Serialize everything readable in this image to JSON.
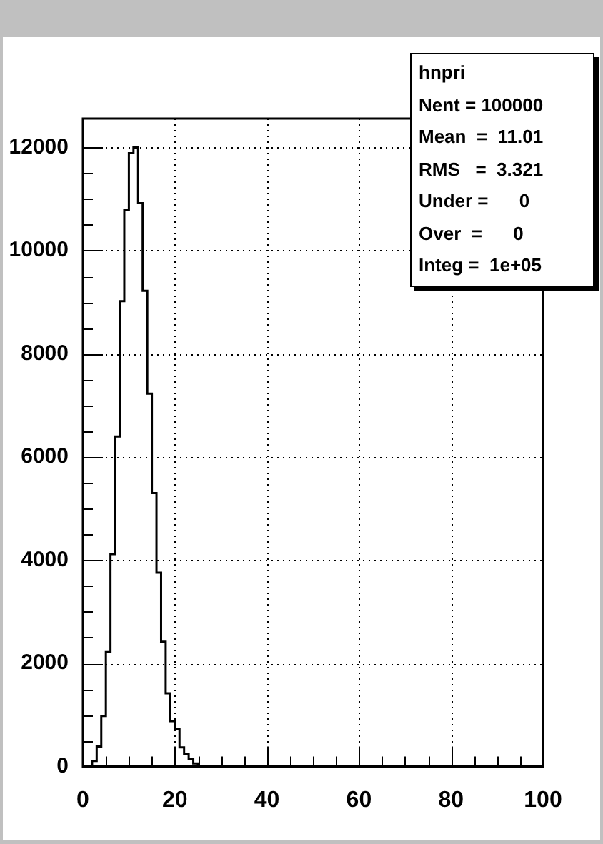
{
  "chart_data": {
    "type": "histogram",
    "bins": [
      0,
      1,
      2,
      3,
      4,
      5,
      6,
      7,
      8,
      9,
      10,
      11,
      12,
      13,
      14,
      15,
      16,
      17,
      18,
      19,
      20,
      21,
      22,
      23,
      24,
      25,
      26,
      27,
      28,
      29,
      30,
      31,
      32,
      33,
      34,
      35,
      36,
      37,
      38,
      39,
      40,
      41,
      42,
      43,
      44,
      45,
      46,
      47,
      48,
      49,
      50,
      51,
      52,
      53,
      54,
      55,
      56,
      57,
      58,
      59,
      60,
      61,
      62,
      63,
      64,
      65,
      66,
      67,
      68,
      69,
      70,
      71,
      72,
      73,
      74,
      75,
      76,
      77,
      78,
      79,
      80,
      81,
      82,
      83,
      84,
      85,
      86,
      87,
      88,
      89,
      90,
      91,
      92,
      93,
      94,
      95,
      96,
      97,
      98,
      99,
      100
    ],
    "values": [
      0,
      0,
      110,
      390,
      980,
      2220,
      4120,
      6400,
      9020,
      10790,
      11890,
      12000,
      10920,
      9220,
      7230,
      5300,
      3760,
      2420,
      1420,
      880,
      720,
      370,
      250,
      140,
      60,
      10,
      0,
      0,
      0,
      0,
      0,
      0,
      0,
      0,
      0,
      0,
      0,
      0,
      0,
      0,
      0,
      0,
      0,
      0,
      0,
      0,
      0,
      0,
      0,
      0,
      0,
      0,
      0,
      0,
      0,
      0,
      0,
      0,
      0,
      0,
      0,
      0,
      0,
      0,
      0,
      0,
      0,
      0,
      0,
      0,
      0,
      0,
      0,
      0,
      0,
      0,
      0,
      0,
      0,
      0,
      0,
      0,
      0,
      0,
      0,
      0,
      0,
      0,
      0,
      0,
      0,
      0,
      0,
      0,
      0,
      0,
      0,
      0,
      0,
      0
    ],
    "color": "#000000",
    "xlim": [
      0,
      100
    ],
    "xticks": [
      0,
      {
        "value": 5,
        "label": null
      },
      {
        "value": 10,
        "label": null
      },
      {
        "value": 15,
        "label": null
      },
      20,
      {
        "value": 25,
        "label": null
      },
      {
        "value": 30,
        "label": null
      },
      {
        "value": 35,
        "label": null
      },
      40,
      {
        "value": 45,
        "label": null
      },
      {
        "value": 50,
        "label": null
      },
      {
        "value": 55,
        "label": null
      },
      60,
      {
        "value": 65,
        "label": null
      },
      {
        "value": 70,
        "label": null
      },
      {
        "value": 75,
        "label": null
      },
      80,
      {
        "value": 85,
        "label": null
      },
      {
        "value": 90,
        "label": null
      },
      {
        "value": 95,
        "label": null
      },
      100
    ],
    "ylim": [
      0,
      12560
    ],
    "yticks": [
      0,
      {
        "value": 500,
        "label": null
      },
      {
        "value": 1000,
        "label": null
      },
      {
        "value": 1500,
        "label": null
      },
      2000,
      {
        "value": 2500,
        "label": null
      },
      {
        "value": 3000,
        "label": null
      },
      {
        "value": 3500,
        "label": null
      },
      4000,
      {
        "value": 4500,
        "label": null
      },
      {
        "value": 5000,
        "label": null
      },
      {
        "value": 5500,
        "label": null
      },
      6000,
      {
        "value": 6500,
        "label": null
      },
      {
        "value": 7000,
        "label": null
      },
      {
        "value": 7500,
        "label": null
      },
      8000,
      {
        "value": 8500,
        "label": null
      },
      {
        "value": 9000,
        "label": null
      },
      {
        "value": 9500,
        "label": null
      },
      10000,
      {
        "value": 10500,
        "label": null
      },
      {
        "value": 11000,
        "label": null
      },
      {
        "value": 11500,
        "label": null
      },
      12000
    ],
    "grid": true,
    "annotations": [
      "hnpri",
      "Nent = 100000",
      "Mean  =  11.01",
      "RMS   =  3.321",
      "Under =      0",
      "Over  =      0",
      "Integ =  1e+05"
    ]
  }
}
